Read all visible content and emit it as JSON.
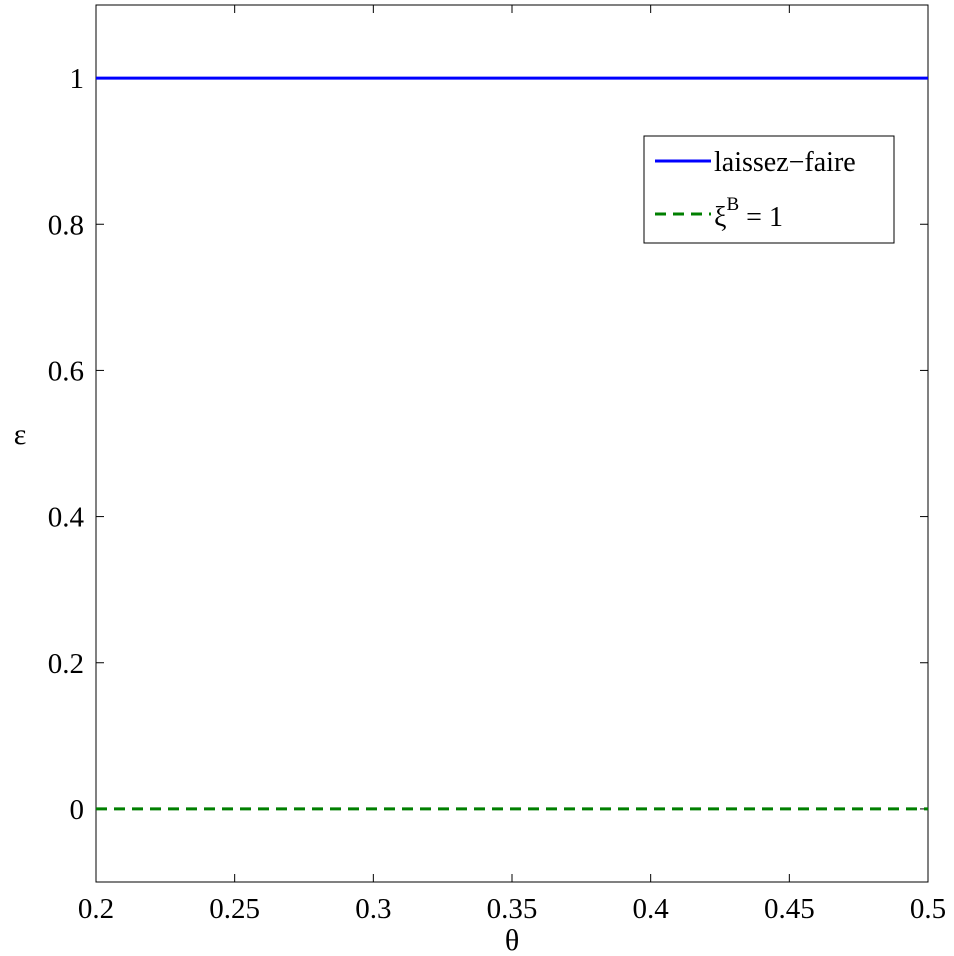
{
  "chart_data": {
    "type": "line",
    "title": "",
    "xlabel": "θ",
    "ylabel": "ε",
    "xlim": [
      0.2,
      0.5
    ],
    "ylim": [
      -0.1,
      1.1
    ],
    "xticks": [
      0.2,
      0.25,
      0.3,
      0.35,
      0.4,
      0.45,
      0.5
    ],
    "xtick_labels": [
      "0.2",
      "0.25",
      "0.3",
      "0.35",
      "0.4",
      "0.45",
      "0.5"
    ],
    "yticks": [
      0,
      0.2,
      0.4,
      0.6,
      0.8,
      1
    ],
    "ytick_labels": [
      "0",
      "0.2",
      "0.4",
      "0.6",
      "0.8",
      "1"
    ],
    "grid": false,
    "legend_position": "top-right",
    "series": [
      {
        "name": "laissez−faire",
        "color": "#0000ff",
        "style": "solid",
        "x": [
          0.2,
          0.25,
          0.3,
          0.35,
          0.4,
          0.45,
          0.5
        ],
        "y": [
          1,
          1,
          1,
          1,
          1,
          1,
          1
        ]
      },
      {
        "name_base": "ξ",
        "name_sup": "B",
        "name_rest": " = 1",
        "color": "#007f00",
        "style": "dashed",
        "x": [
          0.2,
          0.25,
          0.3,
          0.35,
          0.4,
          0.45,
          0.5
        ],
        "y": [
          0,
          0,
          0,
          0,
          0,
          0,
          0
        ]
      }
    ]
  }
}
